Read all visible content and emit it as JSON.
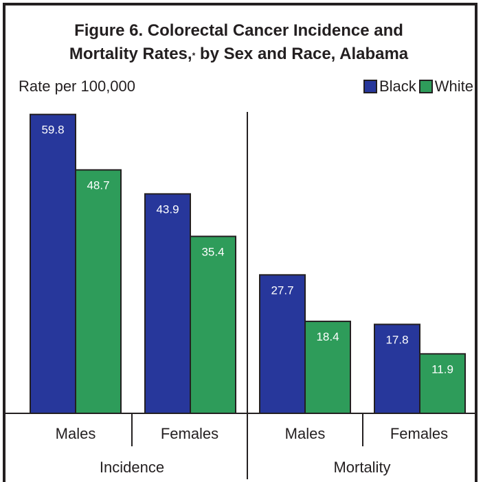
{
  "chart_data": {
    "type": "bar",
    "title_line1": "Figure 6. Colorectal Cancer Incidence and",
    "title_line2": "Mortality Rates,",
    "title_mark": "*",
    "title_line2_end": " by Sex and Race, Alabama",
    "ylabel": "Rate per 100,000",
    "legend_position": "top-right",
    "series": [
      {
        "name": "Black",
        "color": "#27379b",
        "values": [
          59.8,
          43.9,
          27.7,
          17.8
        ]
      },
      {
        "name": "White",
        "color": "#2e9c5a",
        "values": [
          48.7,
          35.4,
          18.4,
          11.9
        ]
      }
    ],
    "categories": [
      "Males",
      "Females",
      "Males",
      "Females"
    ],
    "groups": [
      {
        "label": "Incidence",
        "categories": [
          0,
          1
        ]
      },
      {
        "label": "Mortality",
        "categories": [
          2,
          3
        ]
      }
    ],
    "value_labels": [
      [
        "59.8",
        "43.9",
        "27.7",
        "17.8"
      ],
      [
        "48.7",
        "35.4",
        "18.4",
        "11.9"
      ]
    ],
    "ylim": [
      0,
      60
    ],
    "grid": false
  }
}
